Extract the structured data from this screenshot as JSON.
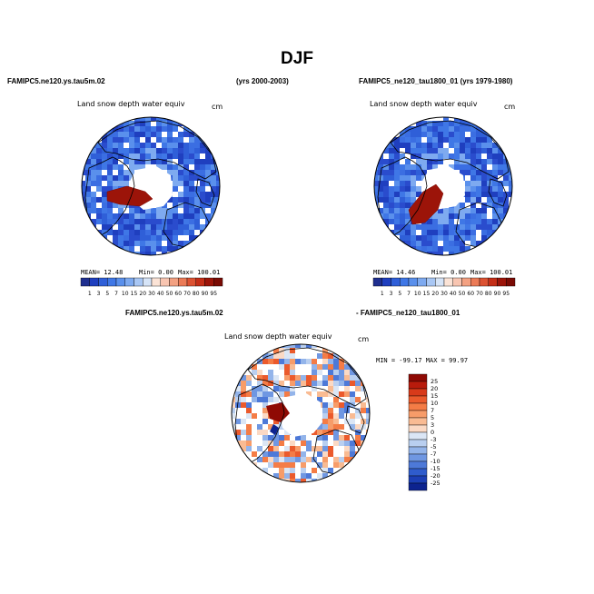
{
  "title": "DJF",
  "panels": [
    {
      "case": "FAMIPC5.ne120.ys.tau5m.02",
      "years": "(yrs 2000-2003)",
      "variable": "Land snow depth water equiv",
      "units": "cm",
      "stats": {
        "mean": "MEAN=  12.48",
        "min": "Min=    0.00",
        "max": "Max= 100.01"
      }
    },
    {
      "case": "FAMIPC5_ne120_tau1800_01 (yrs 1979-1980)",
      "variable": "Land snow depth water equiv",
      "units": "cm",
      "stats": {
        "mean": "MEAN=  14.46",
        "min": "Min=    0.00",
        "max": "Max= 100.01"
      }
    },
    {
      "case_a": "FAMIPC5.ne120.ys.tau5m.02",
      "case_b": "- FAMIPC5_ne120_tau1800_01",
      "variable": "Land snow depth water equiv",
      "units": "cm",
      "minmax": "MIN = -99.17  MAX =   99.97"
    }
  ],
  "chart_data": [
    {
      "type": "heatmap",
      "projection": "polar stereographic (north pole)",
      "title": "Land snow depth water equiv",
      "units": "cm",
      "mean": 12.48,
      "min": 0.0,
      "max": 100.01,
      "colorbar": {
        "orientation": "horizontal",
        "levels": [
          "1",
          "3",
          "5",
          "7",
          "10",
          "15",
          "20",
          "30",
          "40",
          "50",
          "60",
          "70",
          "80",
          "90",
          "95"
        ],
        "colors": [
          "#1f2f8f",
          "#1f3fbf",
          "#2f5fd8",
          "#3f77e6",
          "#5a90ec",
          "#7eaaf0",
          "#a9c7f4",
          "#d6e4f7",
          "#fbe3d6",
          "#f8c5b1",
          "#f3a182",
          "#eb7b57",
          "#dc5232",
          "#c42e17",
          "#9c1409",
          "#7a0b04"
        ]
      }
    },
    {
      "type": "heatmap",
      "projection": "polar stereographic (north pole)",
      "title": "Land snow depth water equiv",
      "units": "cm",
      "mean": 14.46,
      "min": 0.0,
      "max": 100.01,
      "colorbar": {
        "orientation": "horizontal",
        "levels": [
          "1",
          "3",
          "5",
          "7",
          "10",
          "15",
          "20",
          "30",
          "40",
          "50",
          "60",
          "70",
          "80",
          "90",
          "95"
        ],
        "colors": [
          "#1f2f8f",
          "#1f3fbf",
          "#2f5fd8",
          "#3f77e6",
          "#5a90ec",
          "#7eaaf0",
          "#a9c7f4",
          "#d6e4f7",
          "#fbe3d6",
          "#f8c5b1",
          "#f3a182",
          "#eb7b57",
          "#dc5232",
          "#c42e17",
          "#9c1409",
          "#7a0b04"
        ]
      }
    },
    {
      "type": "heatmap",
      "projection": "polar stereographic (north pole)",
      "title": "Land snow depth water equiv",
      "units": "cm",
      "min": -99.17,
      "max": 99.97,
      "colorbar": {
        "orientation": "vertical",
        "levels": [
          "25",
          "20",
          "15",
          "10",
          "7",
          "5",
          "3",
          "0",
          "-3",
          "-5",
          "-7",
          "-10",
          "-15",
          "-20",
          "-25"
        ],
        "colors": [
          "#8f0a04",
          "#b81b0c",
          "#d83a1a",
          "#eb5a2c",
          "#f47c46",
          "#f79c69",
          "#f9bb93",
          "#fbd9c4",
          "#dbe6f5",
          "#b9cff0",
          "#93b4ea",
          "#6f97e2",
          "#4d79d8",
          "#2f5ccc",
          "#1c3fb5",
          "#0d238f"
        ]
      }
    }
  ]
}
